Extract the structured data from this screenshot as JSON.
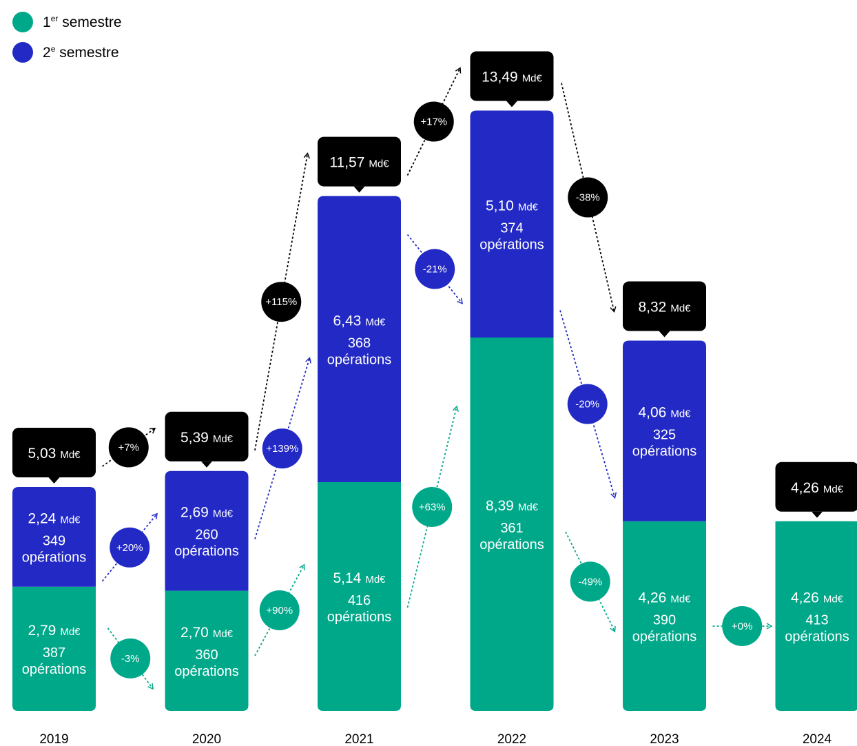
{
  "legend": {
    "s1": {
      "num": "1",
      "sup": "er",
      "text": "semestre",
      "color": "#00a88a"
    },
    "s2": {
      "num": "2",
      "sup": "e",
      "text": "semestre",
      "color": "#2229c4"
    }
  },
  "total_color": "#000000",
  "chart_data": {
    "type": "bar",
    "stacked": true,
    "categories": [
      "2019",
      "2020",
      "2021",
      "2022",
      "2023",
      "2024"
    ],
    "unit": "Md€",
    "series": [
      {
        "name": "1er semestre",
        "values": [
          2.79,
          2.7,
          5.14,
          8.39,
          4.26,
          4.26
        ],
        "value_labels": [
          "2,79",
          "2,70",
          "5,14",
          "8,39",
          "4,26",
          "4,26"
        ],
        "operations": [
          "387",
          "360",
          "416",
          "361",
          "390",
          "413"
        ]
      },
      {
        "name": "2e semestre",
        "values": [
          2.24,
          2.69,
          6.43,
          5.1,
          4.06,
          null
        ],
        "value_labels": [
          "2,24",
          "2,69",
          "6,43",
          "5,10",
          "4,06",
          null
        ],
        "operations": [
          "349",
          "260",
          "368",
          "374",
          "325",
          null
        ]
      }
    ],
    "totals": [
      5.03,
      5.39,
      11.57,
      13.49,
      8.32,
      4.26
    ],
    "total_labels": [
      "5,03",
      "5,39",
      "11,57",
      "13,49",
      "8,32",
      "4,26"
    ],
    "operations_suffix": "opérations",
    "changes": {
      "total": [
        "+7%",
        "+115%",
        "+17%",
        "-38%"
      ],
      "s2": [
        "+20%",
        "+139%",
        "-21%",
        "-20%"
      ],
      "s1": [
        "-3%",
        "+90%",
        "+63%",
        "-49%",
        "+0%"
      ]
    }
  }
}
